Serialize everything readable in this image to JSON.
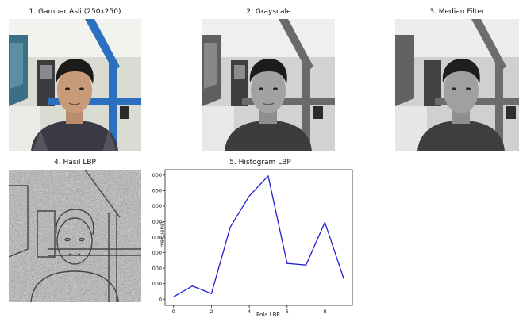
{
  "panels": {
    "original": {
      "title": "1. Gambar Asli (250x250)"
    },
    "grayscale": {
      "title": "2. Grayscale"
    },
    "median": {
      "title": "3. Median Filter"
    },
    "lbp": {
      "title": "4. Hasil LBP"
    }
  },
  "colors": {
    "line": "#1f1fd8",
    "wall": "#cfd6cf",
    "beam": "#2a6fc0",
    "shirt": "#3a3a44",
    "skin": "#c79a7a",
    "hair": "#1b1b1b"
  },
  "chart_data": {
    "type": "line",
    "title": "5. Histogram LBP",
    "xlabel": "Pola LBP",
    "ylabel": "Frekuensi",
    "x": [
      0,
      1,
      2,
      3,
      4,
      5,
      6,
      7,
      8,
      9
    ],
    "series": [
      {
        "values": [
          300,
          1700,
          700,
          9300,
          13300,
          15900,
          4600,
          4400,
          9900,
          2600
        ]
      }
    ],
    "xlim": [
      -0.45,
      9.45
    ],
    "ylim": [
      -800,
      16700
    ],
    "xticks": [
      0,
      2,
      4,
      6,
      8
    ],
    "yticks": [
      0,
      2000,
      4000,
      6000,
      8000,
      10000,
      12000,
      14000,
      16000
    ],
    "xtick_labels": [
      "0",
      "2",
      "4",
      "6",
      "8"
    ],
    "ytick_labels": [
      "0",
      "2000",
      "4000",
      "6000",
      "8000",
      "10000",
      "12000",
      "14000",
      "16000"
    ],
    "grid": false,
    "legend": false
  }
}
